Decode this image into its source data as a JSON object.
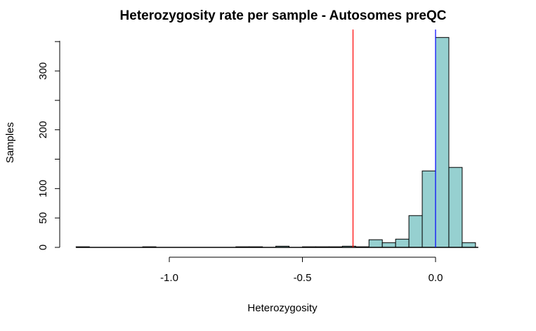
{
  "chart_data": {
    "type": "bar",
    "title": "Heterozygosity rate per sample - Autosomes preQC",
    "xlabel": "Heterozygosity",
    "ylabel": "Samples",
    "x_ticks": [
      -1.0,
      -0.5,
      0.0
    ],
    "x_tick_labels": [
      "-1.0",
      "-0.5",
      "0.0"
    ],
    "y_ticks": [
      0,
      50,
      100,
      150,
      200,
      250,
      300,
      350
    ],
    "y_tick_labels": [
      "0",
      "50",
      "100",
      "",
      "200",
      "",
      "300",
      ""
    ],
    "xlim": [
      -1.4,
      0.2
    ],
    "ylim": [
      0,
      350
    ],
    "bin_width": 0.05,
    "bins": [
      {
        "x0": -1.35,
        "x1": -1.3,
        "count": 1
      },
      {
        "x0": -1.3,
        "x1": -1.25,
        "count": 0
      },
      {
        "x0": -1.25,
        "x1": -1.2,
        "count": 0
      },
      {
        "x0": -1.2,
        "x1": -1.15,
        "count": 0
      },
      {
        "x0": -1.15,
        "x1": -1.1,
        "count": 0
      },
      {
        "x0": -1.1,
        "x1": -1.05,
        "count": 1
      },
      {
        "x0": -1.05,
        "x1": -1.0,
        "count": 0
      },
      {
        "x0": -1.0,
        "x1": -0.95,
        "count": 0
      },
      {
        "x0": -0.95,
        "x1": -0.9,
        "count": 0
      },
      {
        "x0": -0.9,
        "x1": -0.85,
        "count": 0
      },
      {
        "x0": -0.85,
        "x1": -0.8,
        "count": 0
      },
      {
        "x0": -0.8,
        "x1": -0.75,
        "count": 0
      },
      {
        "x0": -0.75,
        "x1": -0.7,
        "count": 1
      },
      {
        "x0": -0.7,
        "x1": -0.65,
        "count": 1
      },
      {
        "x0": -0.65,
        "x1": -0.6,
        "count": 0
      },
      {
        "x0": -0.6,
        "x1": -0.55,
        "count": 2
      },
      {
        "x0": -0.55,
        "x1": -0.5,
        "count": 0
      },
      {
        "x0": -0.5,
        "x1": -0.45,
        "count": 1
      },
      {
        "x0": -0.45,
        "x1": -0.4,
        "count": 1
      },
      {
        "x0": -0.4,
        "x1": -0.35,
        "count": 1
      },
      {
        "x0": -0.35,
        "x1": -0.3,
        "count": 2
      },
      {
        "x0": -0.3,
        "x1": -0.25,
        "count": 1
      },
      {
        "x0": -0.25,
        "x1": -0.2,
        "count": 13
      },
      {
        "x0": -0.2,
        "x1": -0.15,
        "count": 8
      },
      {
        "x0": -0.15,
        "x1": -0.1,
        "count": 14
      },
      {
        "x0": -0.1,
        "x1": -0.05,
        "count": 54
      },
      {
        "x0": -0.05,
        "x1": 0.0,
        "count": 130
      },
      {
        "x0": 0.0,
        "x1": 0.05,
        "count": 357
      },
      {
        "x0": 0.05,
        "x1": 0.1,
        "count": 136
      },
      {
        "x0": 0.1,
        "x1": 0.15,
        "count": 8
      }
    ],
    "vlines": [
      {
        "x": -0.31,
        "color": "#ff0000"
      },
      {
        "x": 0.0,
        "color": "#0000ff"
      }
    ],
    "bar_fill": "#96d0d0",
    "bar_stroke": "#000000",
    "grid": false
  }
}
